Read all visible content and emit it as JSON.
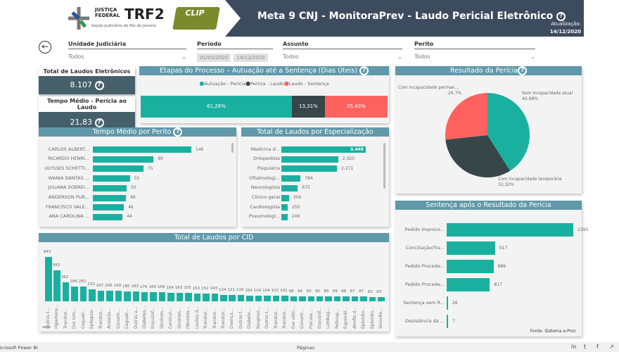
{
  "header": {
    "org_line1": "JUSTIÇA",
    "org_line2": "FEDERAL",
    "org_brand": "TRF2",
    "org_sub": "Seção Judiciária do Rio de Janeiro",
    "clip_logo": "CLIP",
    "title": "Meta 9 CNJ - MonitoraPrev - Laudo Pericial Eletrônico",
    "update_label": "Atualização:",
    "update_date": "14/12/2020"
  },
  "filters": {
    "unidade": {
      "label": "Unidade Judiciária",
      "value": "Todos"
    },
    "periodo": {
      "label": "Período",
      "start": "01/01/2020",
      "end": "14/12/2020"
    },
    "assunto": {
      "label": "Assunto",
      "value": "Todos"
    },
    "perito": {
      "label": "Perito",
      "value": "Todos"
    }
  },
  "kpis": [
    {
      "label": "Total de Laudos Eletrônicos",
      "value": "8.107"
    },
    {
      "label": "Tempo Médio - Perícia ao Laudo",
      "value": "21,83"
    }
  ],
  "colors": {
    "teal": "#1ab0a0",
    "dark": "#374649",
    "red": "#fd625e",
    "header": "#3d4b5e",
    "panel_header": "#5f99aa"
  },
  "chart_data": [
    {
      "id": "etapas",
      "type": "bar",
      "title": "Etapas do Processo – Autuação até a Sentença (Dias Úteis)",
      "legend": [
        "Autuação - Perícia",
        "Perícia - Laudo",
        "Laudo - Sentença"
      ],
      "values": [
        61.26,
        13.31,
        25.43
      ],
      "labels": [
        "61,26%",
        "13,31%",
        "25,43%"
      ]
    },
    {
      "id": "pie",
      "type": "pie",
      "title": "Resultado da Perícia",
      "slices": [
        {
          "name": "Sem incapacidade atual",
          "value": 40.98,
          "label": "40.98%"
        },
        {
          "name": "Com incapacidade temporária",
          "value": 32.32,
          "label": "32,32%"
        },
        {
          "name": "Com incapacidade perman...",
          "value": 26.7,
          "label": "26.7%"
        }
      ]
    },
    {
      "id": "perito",
      "type": "bar",
      "title": "Tempo Médio por Perito",
      "categories": [
        "CARLOS ALBERT...",
        "RICARDO HENRI...",
        "ULYSSES SCHETTI...",
        "WANIA DANTAS ...",
        "JULIANA SOBREI...",
        "ANDERSON PUR...",
        "FRANCISCO VALE...",
        "ANA CAROLINA ..."
      ],
      "values": [
        146,
        90,
        75,
        55,
        50,
        49,
        46,
        44
      ],
      "labels": [
        "146",
        "90",
        "75",
        "55",
        "50",
        "49",
        "46",
        "44"
      ]
    },
    {
      "id": "espec",
      "type": "bar",
      "title": "Total de Laudos por Especialização",
      "categories": [
        "Medicina d...",
        "Ortopedista",
        "Psiquiatra",
        "Oftalmologi...",
        "Neurologista",
        "Clínico geral",
        "Cardiologista",
        "Pneumologi..."
      ],
      "values": [
        3449,
        2320,
        2271,
        784,
        673,
        304,
        250,
        249
      ],
      "labels": [
        "3.449",
        "2.320",
        "2.271",
        "784",
        "673",
        "304",
        "250",
        "249"
      ]
    },
    {
      "id": "cid",
      "type": "bar",
      "title": "Total de Laudos por CID",
      "categories": [
        "Outros t...",
        "Hipertens...",
        "Transtor...",
        "Dor lom...",
        "Cegueir...",
        "Epilepsia",
        "Transtor...",
        "Ansieda...",
        "Gonartr...",
        "Cegueir...",
        "Outras a...",
        "Diabetes...",
        "Esquizof...",
        "Síndrom...",
        "Cervical...",
        "Síndrom...",
        "Fibromia...",
        "Lesões d...",
        "Transtor...",
        "Transtor...",
        "Transtor...",
        "Doença...",
        "Outros t...",
        "Diabete...",
        "Neoplasi...",
        "Outros t...",
        "Transtor...",
        "Transtor...",
        "Dor artic...",
        "Gonartr...",
        "Psicose...",
        "Esquizof...",
        "Lumbag...",
        "Retinop...",
        "Espondil...",
        "Atrofia d...",
        "Episódio...",
        "Episódio...",
        "Sinovite..."
      ],
      "values": [
        843,
        593,
        362,
        286,
        282,
        233,
        207,
        206,
        199,
        185,
        183,
        176,
        169,
        169,
        164,
        163,
        155,
        153,
        152,
        143,
        124,
        121,
        116,
        104,
        104,
        104,
        102,
        101,
        98,
        94,
        93,
        90,
        89,
        89,
        88,
        87,
        87,
        83,
        83
      ]
    },
    {
      "id": "sentenca",
      "type": "bar",
      "title": "Sentença após o Resultado da Perícia",
      "categories": [
        "Pedido Improce...",
        "Conciliação/Tra...",
        "Pedido Procede...",
        "Pedido Procede...",
        "Sentença sem R...",
        "Desistência da ..."
      ],
      "values": [
        2395,
        917,
        886,
        817,
        26,
        7
      ],
      "labels": [
        "2395",
        "917",
        "886",
        "817",
        "26",
        "7"
      ],
      "source": "Fonte: Sistema e-Proc"
    }
  ],
  "footer": {
    "app": "Microsoft Power BI",
    "pages": "Páginas"
  }
}
